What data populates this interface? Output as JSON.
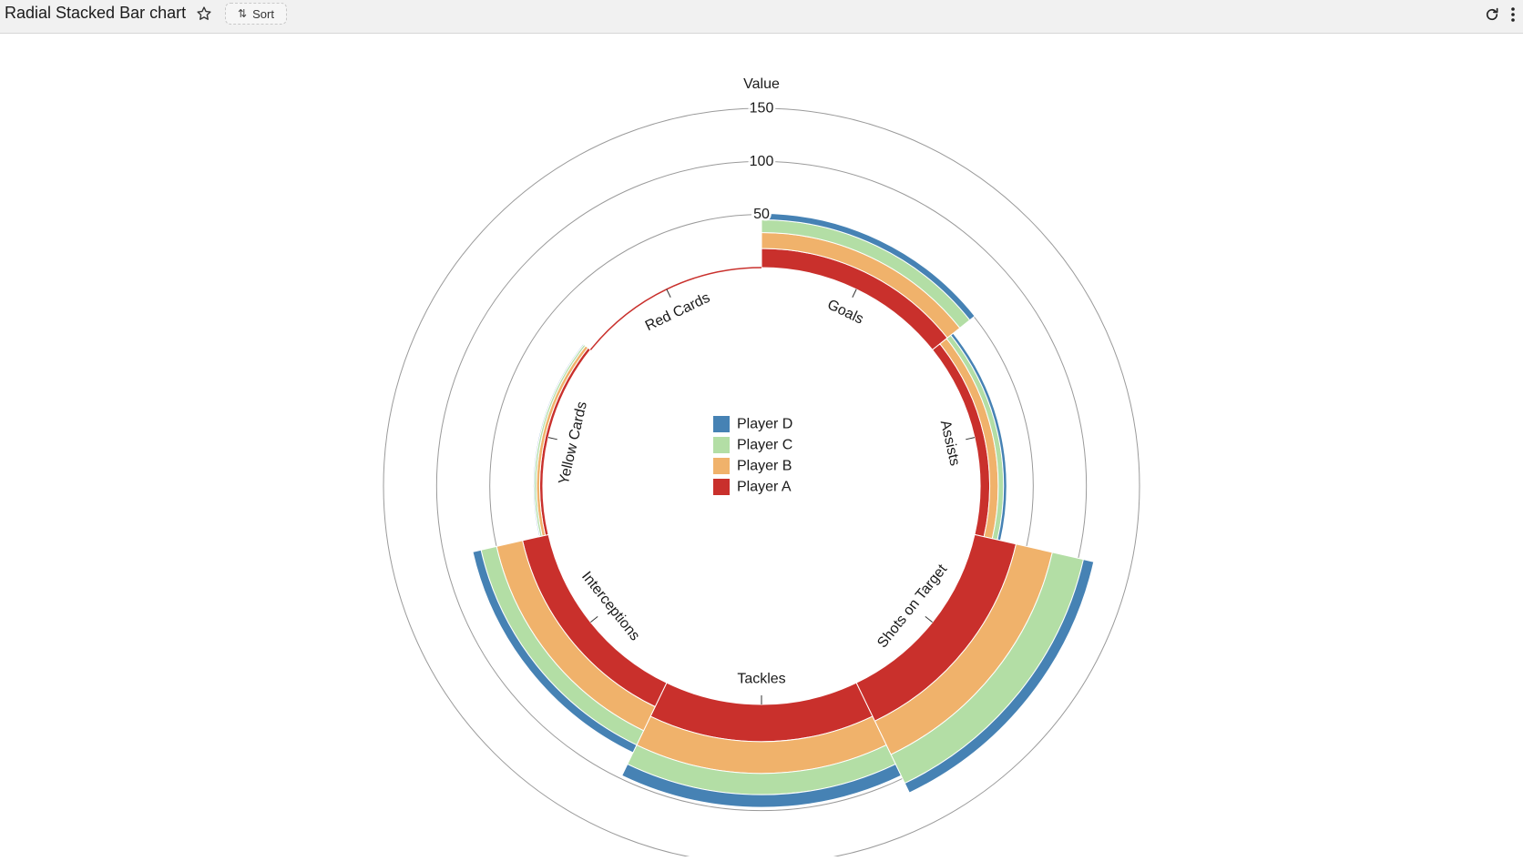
{
  "header": {
    "title": "Radial Stacked Bar chart",
    "sort_label": "Sort",
    "icons": [
      "star-icon",
      "sort-icon",
      "refresh-icon",
      "more-vertical-icon"
    ]
  },
  "chart_data": {
    "type": "radial-stacked-bar",
    "ylabel": "Value",
    "ticks": [
      50,
      100,
      150
    ],
    "ylim": [
      0,
      150
    ],
    "categories": [
      "Goals",
      "Assists",
      "Shots on Target",
      "Tackles",
      "Interceptions",
      "Yellow Cards",
      "Red Cards"
    ],
    "series": [
      {
        "name": "Player A",
        "color": "#c9302c",
        "values": [
          18,
          9,
          40,
          35,
          25,
          3,
          0
        ]
      },
      {
        "name": "Player B",
        "color": "#f0b26b",
        "values": [
          15,
          8,
          35,
          30,
          25,
          3,
          0
        ]
      },
      {
        "name": "Player C",
        "color": "#b3dea5",
        "values": [
          12,
          5,
          30,
          20,
          15,
          2,
          0
        ]
      },
      {
        "name": "Player D",
        "color": "#4682b4",
        "values": [
          6,
          3,
          10,
          12,
          8,
          1,
          0
        ]
      }
    ],
    "legend_order": [
      "Player D",
      "Player C",
      "Player B",
      "Player A"
    ],
    "legend_position": "center"
  }
}
